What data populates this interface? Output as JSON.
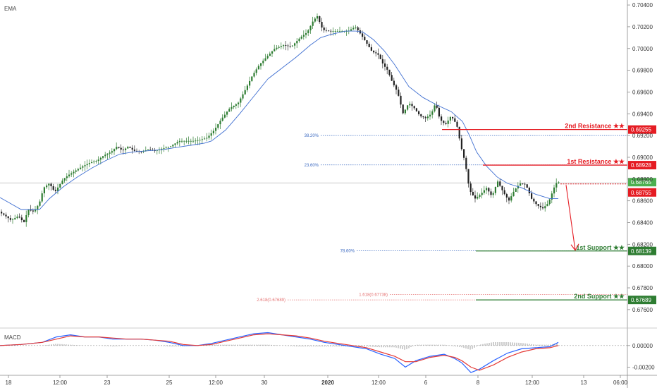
{
  "panel": {
    "main_label": "EMA",
    "macd_label": "MACD"
  },
  "chart_data": {
    "type": "candlestick",
    "price_axis": {
      "range": [
        0.6745,
        0.7042
      ],
      "ticks": [
        "0.70400",
        "0.70200",
        "0.70000",
        "0.69800",
        "0.69600",
        "0.69400",
        "0.69200",
        "0.69000",
        "0.68800",
        "0.68600",
        "0.68400",
        "0.68200",
        "0.68000",
        "0.67800",
        "0.67600"
      ]
    },
    "time_axis": {
      "labels": [
        "18",
        "12:00",
        "23",
        "25",
        "12:00",
        "30",
        "2020",
        "12:00",
        "6",
        "8",
        "12:00",
        "13",
        "06:00"
      ],
      "bold": [
        "2020"
      ]
    },
    "levels": [
      {
        "name": "2nd Resistance ★★",
        "value": "0.69255",
        "price": 0.69255,
        "color": "#e51c23"
      },
      {
        "name": "1st Resistance ★★",
        "value": "0.68928",
        "price": 0.68928,
        "color": "#e51c23"
      },
      {
        "name": "1st Support ★★",
        "value": "0.68139",
        "price": 0.68139,
        "color": "#2e7d32"
      },
      {
        "name": "2nd Support ★★",
        "value": "0.67689",
        "price": 0.67689,
        "color": "#2e7d32"
      }
    ],
    "price_tags": [
      {
        "value": "0.68765",
        "price": 0.68765,
        "color": "#4caf50"
      },
      {
        "value": "0.68755",
        "price": 0.68755,
        "color": "#e51c23"
      }
    ],
    "fib_levels": [
      {
        "label": "38.20%",
        "price": 0.692,
        "color": "#3d6bc2"
      },
      {
        "label": "23.60%",
        "price": 0.6893,
        "color": "#3d6bc2"
      },
      {
        "label": "78.60%",
        "price": 0.6814,
        "color": "#3d6bc2"
      },
      {
        "label": "1.618(0.67738)",
        "price": 0.67738,
        "color": "#e57373"
      },
      {
        "label": "2.618(0.67689)",
        "price": 0.67689,
        "color": "#e57373"
      }
    ],
    "macd_axis": {
      "range": [
        -0.0025,
        0.0013
      ],
      "ticks": [
        "0.00000",
        "-0.00200"
      ]
    },
    "price_path": [
      [
        0,
        0.685
      ],
      [
        8,
        0.6847
      ],
      [
        18,
        0.6842
      ],
      [
        28,
        0.6846
      ],
      [
        36,
        0.684
      ],
      [
        42,
        0.6852
      ],
      [
        50,
        0.685
      ],
      [
        58,
        0.6858
      ],
      [
        64,
        0.6872
      ],
      [
        72,
        0.6876
      ],
      [
        80,
        0.6868
      ],
      [
        86,
        0.6874
      ],
      [
        92,
        0.688
      ],
      [
        100,
        0.6884
      ],
      [
        110,
        0.6888
      ],
      [
        120,
        0.6892
      ],
      [
        130,
        0.6895
      ],
      [
        140,
        0.6897
      ],
      [
        150,
        0.6902
      ],
      [
        160,
        0.6905
      ],
      [
        168,
        0.691
      ],
      [
        176,
        0.6906
      ],
      [
        184,
        0.691
      ],
      [
        192,
        0.6906
      ],
      [
        202,
        0.6905
      ],
      [
        212,
        0.6907
      ],
      [
        222,
        0.6906
      ],
      [
        232,
        0.6908
      ],
      [
        244,
        0.691
      ],
      [
        256,
        0.6915
      ],
      [
        266,
        0.6915
      ],
      [
        276,
        0.6915
      ],
      [
        286,
        0.6916
      ],
      [
        296,
        0.6918
      ],
      [
        306,
        0.6925
      ],
      [
        316,
        0.6935
      ],
      [
        328,
        0.6945
      ],
      [
        340,
        0.695
      ],
      [
        350,
        0.6962
      ],
      [
        360,
        0.6975
      ],
      [
        370,
        0.6985
      ],
      [
        380,
        0.6992
      ],
      [
        392,
        0.7
      ],
      [
        404,
        0.7003
      ],
      [
        416,
        0.7002
      ],
      [
        428,
        0.701
      ],
      [
        438,
        0.7015
      ],
      [
        446,
        0.7025
      ],
      [
        452,
        0.703
      ],
      [
        460,
        0.7017
      ],
      [
        470,
        0.7016
      ],
      [
        482,
        0.7016
      ],
      [
        496,
        0.7016
      ],
      [
        506,
        0.702
      ],
      [
        514,
        0.7013
      ],
      [
        522,
        0.7005
      ],
      [
        530,
        0.6997
      ],
      [
        538,
        0.6995
      ],
      [
        546,
        0.6985
      ],
      [
        552,
        0.698
      ],
      [
        558,
        0.697
      ],
      [
        566,
        0.696
      ],
      [
        574,
        0.694
      ],
      [
        582,
        0.695
      ],
      [
        590,
        0.6945
      ],
      [
        598,
        0.6938
      ],
      [
        606,
        0.6936
      ],
      [
        614,
        0.694
      ],
      [
        620,
        0.695
      ],
      [
        626,
        0.6935
      ],
      [
        634,
        0.693
      ],
      [
        642,
        0.6938
      ],
      [
        650,
        0.693
      ],
      [
        656,
        0.691
      ],
      [
        662,
        0.6895
      ],
      [
        668,
        0.687
      ],
      [
        676,
        0.6862
      ],
      [
        684,
        0.6866
      ],
      [
        692,
        0.6872
      ],
      [
        700,
        0.6864
      ],
      [
        708,
        0.6878
      ],
      [
        716,
        0.6868
      ],
      [
        724,
        0.686
      ],
      [
        732,
        0.687
      ],
      [
        740,
        0.6876
      ],
      [
        748,
        0.6875
      ],
      [
        756,
        0.6862
      ],
      [
        764,
        0.6856
      ],
      [
        772,
        0.6853
      ],
      [
        780,
        0.6858
      ],
      [
        788,
        0.6872
      ],
      [
        792,
        0.6877
      ]
    ],
    "ema_path": [
      [
        0,
        0.6863
      ],
      [
        30,
        0.6852
      ],
      [
        56,
        0.6852
      ],
      [
        70,
        0.6862
      ],
      [
        90,
        0.6873
      ],
      [
        110,
        0.6882
      ],
      [
        130,
        0.689
      ],
      [
        150,
        0.6897
      ],
      [
        170,
        0.6903
      ],
      [
        190,
        0.6905
      ],
      [
        210,
        0.6906
      ],
      [
        230,
        0.6907
      ],
      [
        250,
        0.6909
      ],
      [
        270,
        0.6911
      ],
      [
        290,
        0.6913
      ],
      [
        300,
        0.6915
      ],
      [
        320,
        0.6925
      ],
      [
        340,
        0.694
      ],
      [
        360,
        0.6956
      ],
      [
        380,
        0.6972
      ],
      [
        400,
        0.6982
      ],
      [
        420,
        0.6992
      ],
      [
        440,
        0.7003
      ],
      [
        455,
        0.701
      ],
      [
        470,
        0.7013
      ],
      [
        490,
        0.7016
      ],
      [
        505,
        0.7016
      ],
      [
        515,
        0.7015
      ],
      [
        530,
        0.7008
      ],
      [
        545,
        0.6998
      ],
      [
        560,
        0.6985
      ],
      [
        580,
        0.6965
      ],
      [
        600,
        0.6955
      ],
      [
        620,
        0.6948
      ],
      [
        640,
        0.6942
      ],
      [
        656,
        0.6933
      ],
      [
        666,
        0.692
      ],
      [
        676,
        0.6905
      ],
      [
        690,
        0.6892
      ],
      [
        705,
        0.6882
      ],
      [
        720,
        0.6876
      ],
      [
        740,
        0.6872
      ],
      [
        760,
        0.6866
      ],
      [
        780,
        0.6862
      ],
      [
        792,
        0.6862
      ]
    ],
    "macd_path": [
      [
        0,
        0.0
      ],
      [
        30,
        0.0001
      ],
      [
        60,
        0.0003
      ],
      [
        80,
        0.0008
      ],
      [
        100,
        0.001
      ],
      [
        120,
        0.0008
      ],
      [
        140,
        0.0008
      ],
      [
        160,
        0.0006
      ],
      [
        180,
        0.0006
      ],
      [
        200,
        0.0006
      ],
      [
        220,
        0.0005
      ],
      [
        240,
        0.0003
      ],
      [
        260,
        0.0
      ],
      [
        280,
        0.0
      ],
      [
        300,
        0.0002
      ],
      [
        320,
        0.0005
      ],
      [
        340,
        0.0008
      ],
      [
        360,
        0.0011
      ],
      [
        380,
        0.0012
      ],
      [
        400,
        0.001
      ],
      [
        420,
        0.0008
      ],
      [
        440,
        0.0006
      ],
      [
        460,
        0.0003
      ],
      [
        480,
        0.0001
      ],
      [
        500,
        -0.0001
      ],
      [
        520,
        -0.0003
      ],
      [
        540,
        -0.0008
      ],
      [
        560,
        -0.0012
      ],
      [
        575,
        -0.002
      ],
      [
        590,
        -0.0014
      ],
      [
        610,
        -0.001
      ],
      [
        630,
        -0.0008
      ],
      [
        645,
        -0.0012
      ],
      [
        655,
        -0.0016
      ],
      [
        668,
        -0.0025
      ],
      [
        680,
        -0.0022
      ],
      [
        700,
        -0.0014
      ],
      [
        720,
        -0.0007
      ],
      [
        740,
        -0.0003
      ],
      [
        760,
        -0.0002
      ],
      [
        780,
        -0.0001
      ],
      [
        792,
        0.0003
      ]
    ],
    "signal_path": [
      [
        0,
        0.0
      ],
      [
        30,
        0.0001
      ],
      [
        60,
        0.0003
      ],
      [
        80,
        0.0006
      ],
      [
        100,
        0.0009
      ],
      [
        120,
        0.0008
      ],
      [
        140,
        0.0008
      ],
      [
        160,
        0.0007
      ],
      [
        180,
        0.0006
      ],
      [
        200,
        0.0006
      ],
      [
        220,
        0.0005
      ],
      [
        240,
        0.0004
      ],
      [
        260,
        0.0001
      ],
      [
        280,
        0.0
      ],
      [
        300,
        0.0001
      ],
      [
        320,
        0.0004
      ],
      [
        340,
        0.0007
      ],
      [
        360,
        0.001
      ],
      [
        380,
        0.0011
      ],
      [
        400,
        0.001
      ],
      [
        420,
        0.0009
      ],
      [
        440,
        0.0007
      ],
      [
        460,
        0.0004
      ],
      [
        480,
        0.0002
      ],
      [
        500,
        0.0
      ],
      [
        520,
        -0.0002
      ],
      [
        540,
        -0.0006
      ],
      [
        560,
        -0.001
      ],
      [
        575,
        -0.0015
      ],
      [
        590,
        -0.0015
      ],
      [
        610,
        -0.0011
      ],
      [
        630,
        -0.0009
      ],
      [
        645,
        -0.0011
      ],
      [
        655,
        -0.0014
      ],
      [
        668,
        -0.002
      ],
      [
        680,
        -0.0023
      ],
      [
        700,
        -0.0018
      ],
      [
        720,
        -0.0011
      ],
      [
        740,
        -0.0006
      ],
      [
        760,
        -0.0003
      ],
      [
        780,
        -0.0002
      ],
      [
        792,
        0.0
      ]
    ]
  }
}
